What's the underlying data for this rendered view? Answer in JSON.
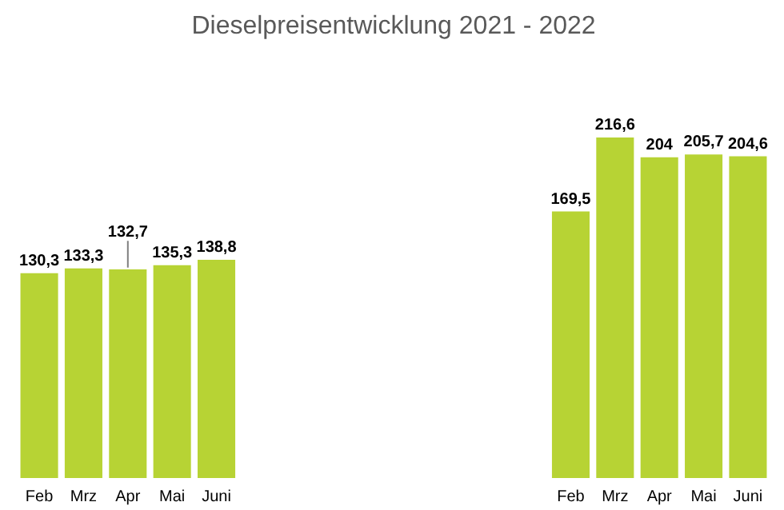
{
  "chart_data": {
    "type": "bar",
    "title": "Dieselpreisentwicklung 2021 - 2022",
    "categories": [
      "Feb",
      "Mrz",
      "Apr",
      "Mai",
      "Juni",
      null,
      null,
      null,
      null,
      null,
      null,
      null,
      "Feb",
      "Mrz",
      "Apr",
      "Mai",
      "Juni"
    ],
    "values": [
      130.3,
      133.3,
      132.7,
      135.3,
      138.8,
      null,
      null,
      null,
      null,
      null,
      null,
      null,
      169.5,
      216.6,
      204,
      205.7,
      204.6
    ],
    "value_labels": [
      "130,3",
      "133,3",
      "132,7",
      "135,3",
      "138,8",
      null,
      null,
      null,
      null,
      null,
      null,
      null,
      "169,5",
      "216,6",
      "204",
      "205,7",
      "204,6"
    ],
    "color": "#b7d334",
    "grid": false
  }
}
